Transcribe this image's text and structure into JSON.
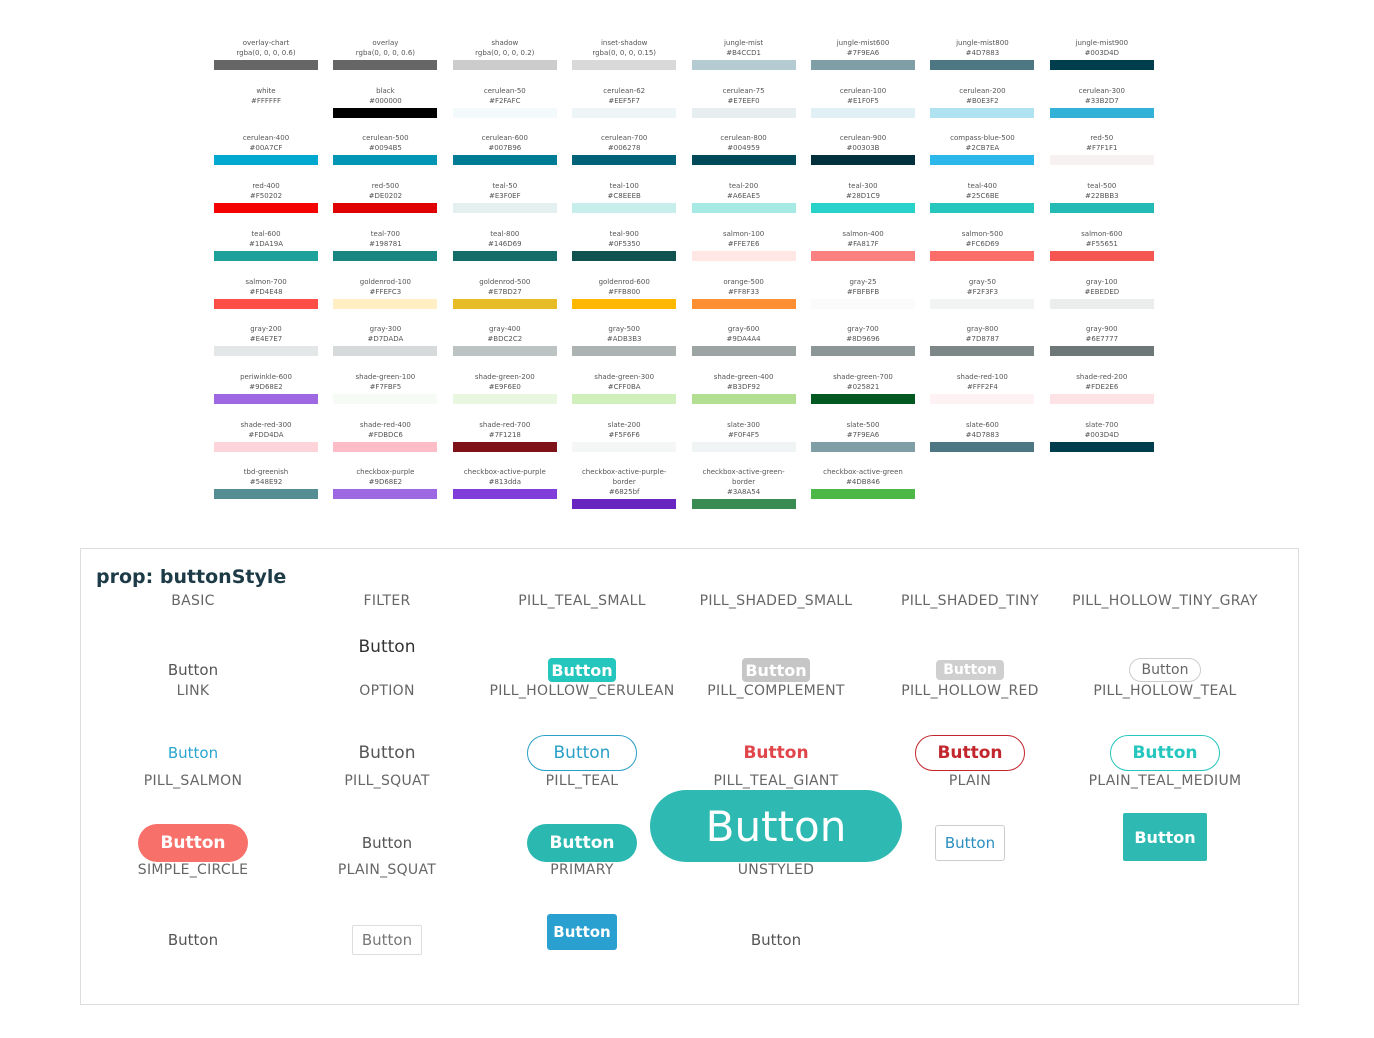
{
  "swatches": [
    [
      {
        "name": "overlay-chart",
        "value": "rgba(0, 0, 0, 0.6)"
      },
      {
        "name": "overlay",
        "value": "rgba(0, 0, 0, 0.6)"
      },
      {
        "name": "shadow",
        "value": "rgba(0, 0, 0, 0.2)"
      },
      {
        "name": "inset-shadow",
        "value": "rgba(0, 0, 0, 0.15)"
      },
      {
        "name": "jungle-mist",
        "value": "#B4CCD1"
      },
      {
        "name": "jungle-mist600",
        "value": "#7F9EA6"
      },
      {
        "name": "jungle-mist800",
        "value": "#4D7883"
      },
      {
        "name": "jungle-mist900",
        "value": "#003D4D"
      }
    ],
    [
      {
        "name": "white",
        "value": "#FFFFFF"
      },
      {
        "name": "black",
        "value": "#000000"
      },
      {
        "name": "cerulean-50",
        "value": "#F2FAFC"
      },
      {
        "name": "cerulean-62",
        "value": "#EEF5F7"
      },
      {
        "name": "cerulean-75",
        "value": "#E7EEF0"
      },
      {
        "name": "cerulean-100",
        "value": "#E1F0F5"
      },
      {
        "name": "cerulean-200",
        "value": "#B0E3F2"
      },
      {
        "name": "cerulean-300",
        "value": "#33B2D7"
      }
    ],
    [
      {
        "name": "cerulean-400",
        "value": "#00A7CF"
      },
      {
        "name": "cerulean-500",
        "value": "#0094B5"
      },
      {
        "name": "cerulean-600",
        "value": "#007B96"
      },
      {
        "name": "cerulean-700",
        "value": "#006278"
      },
      {
        "name": "cerulean-800",
        "value": "#004959"
      },
      {
        "name": "cerulean-900",
        "value": "#00303B"
      },
      {
        "name": "compass-blue-500",
        "value": "#2CB7EA"
      },
      {
        "name": "red-50",
        "value": "#F7F1F1"
      }
    ],
    [
      {
        "name": "red-400",
        "value": "#F50202"
      },
      {
        "name": "red-500",
        "value": "#DE0202"
      },
      {
        "name": "teal-50",
        "value": "#E3F0EF"
      },
      {
        "name": "teal-100",
        "value": "#C8EEEB"
      },
      {
        "name": "teal-200",
        "value": "#A6EAE5"
      },
      {
        "name": "teal-300",
        "value": "#28D1C9"
      },
      {
        "name": "teal-400",
        "value": "#25C6BE"
      },
      {
        "name": "teal-500",
        "value": "#22BBB3"
      }
    ],
    [
      {
        "name": "teal-600",
        "value": "#1DA19A"
      },
      {
        "name": "teal-700",
        "value": "#198781"
      },
      {
        "name": "teal-800",
        "value": "#146D69"
      },
      {
        "name": "teal-900",
        "value": "#0F5350"
      },
      {
        "name": "salmon-100",
        "value": "#FFE7E6"
      },
      {
        "name": "salmon-400",
        "value": "#FA817F"
      },
      {
        "name": "salmon-500",
        "value": "#FC6D69"
      },
      {
        "name": "salmon-600",
        "value": "#F55651"
      }
    ],
    [
      {
        "name": "salmon-700",
        "value": "#FD4E48"
      },
      {
        "name": "goldenrod-100",
        "value": "#FFEFC3"
      },
      {
        "name": "goldenrod-500",
        "value": "#E7BD27"
      },
      {
        "name": "goldenrod-600",
        "value": "#FFB800"
      },
      {
        "name": "orange-500",
        "value": "#FF8F33"
      },
      {
        "name": "gray-25",
        "value": "#FBFBFB"
      },
      {
        "name": "gray-50",
        "value": "#F2F3F3"
      },
      {
        "name": "gray-100",
        "value": "#EBEDED"
      }
    ],
    [
      {
        "name": "gray-200",
        "value": "#E4E7E7"
      },
      {
        "name": "gray-300",
        "value": "#D7DADA"
      },
      {
        "name": "gray-400",
        "value": "#BDC2C2"
      },
      {
        "name": "gray-500",
        "value": "#ADB3B3"
      },
      {
        "name": "gray-600",
        "value": "#9DA4A4"
      },
      {
        "name": "gray-700",
        "value": "#8D9696"
      },
      {
        "name": "gray-800",
        "value": "#7D8787"
      },
      {
        "name": "gray-900",
        "value": "#6E7777"
      }
    ],
    [
      {
        "name": "periwinkle-600",
        "value": "#9D68E2"
      },
      {
        "name": "shade-green-100",
        "value": "#F7FBF5"
      },
      {
        "name": "shade-green-200",
        "value": "#E9F6E0"
      },
      {
        "name": "shade-green-300",
        "value": "#CFF0BA"
      },
      {
        "name": "shade-green-400",
        "value": "#B3DF92"
      },
      {
        "name": "shade-green-700",
        "value": "#025821"
      },
      {
        "name": "shade-red-100",
        "value": "#FFF2F4"
      },
      {
        "name": "shade-red-200",
        "value": "#FDE2E6"
      }
    ],
    [
      {
        "name": "shade-red-300",
        "value": "#FDD4DA"
      },
      {
        "name": "shade-red-400",
        "value": "#FDBDC6"
      },
      {
        "name": "shade-red-700",
        "value": "#7F1218"
      },
      {
        "name": "slate-200",
        "value": "#F5F6F6"
      },
      {
        "name": "slate-300",
        "value": "#F0F4F5"
      },
      {
        "name": "slate-500",
        "value": "#7F9EA6"
      },
      {
        "name": "slate-600",
        "value": "#4D7883"
      },
      {
        "name": "slate-700",
        "value": "#003D4D"
      }
    ],
    [
      {
        "name": "tbd-greenish",
        "value": "#548E92"
      },
      {
        "name": "checkbox-purple",
        "value": "#9D68E2"
      },
      {
        "name": "checkbox-active-purple",
        "value": "#813dda"
      },
      {
        "name": "checkbox-active-purple-border",
        "value": "#6825bf"
      },
      {
        "name": "checkbox-active-green-border",
        "value": "#3A8A54"
      },
      {
        "name": "checkbox-active-green",
        "value": "#4DB846"
      }
    ]
  ],
  "buttons": {
    "title": "prop: buttonStyle",
    "rows": [
      [
        {
          "label": "BASIC"
        },
        {
          "label": "FILTER"
        },
        {
          "label": "PILL_TEAL_SMALL"
        },
        {
          "label": "PILL_SHADED_SMALL"
        },
        {
          "label": "PILL_SHADED_TINY"
        },
        {
          "label": "PILL_HOLLOW_TINY_GRAY"
        }
      ],
      [
        {
          "button": "Button",
          "label": "LINK"
        },
        {
          "button": "Button",
          "label": "OPTION"
        },
        {
          "button": "Button",
          "label": "PILL_HOLLOW_CERULEAN"
        },
        {
          "button": "Button",
          "label": "PILL_COMPLEMENT"
        },
        {
          "button": "Button",
          "label": "PILL_HOLLOW_RED"
        },
        {
          "button": "Button",
          "label": "PILL_HOLLOW_TEAL"
        }
      ],
      [
        {
          "button": "Button",
          "label": "PILL_SALMON"
        },
        {
          "button": "Button",
          "label": "PILL_SQUAT"
        },
        {
          "button": "Button",
          "label": "PILL_TEAL"
        },
        {
          "button": "Button",
          "label": "PILL_TEAL_GIANT"
        },
        {
          "button": "Button",
          "label": "PLAIN"
        },
        {
          "button": "Button",
          "label": "PLAIN_TEAL_MEDIUM"
        }
      ],
      [
        {
          "button": "Button",
          "label": "SIMPLE_CIRCLE"
        },
        {
          "button": "Button",
          "label": "PLAIN_SQUAT"
        },
        {
          "button": "Button",
          "label": "PRIMARY"
        },
        {
          "button": "Button",
          "label": "UNSTYLED"
        },
        {
          "button": "Button"
        },
        {
          "button": "Button"
        }
      ],
      [
        {
          "button": "Button"
        },
        {
          "button": "Button"
        },
        {
          "button": "Button"
        },
        {
          "button": "Button"
        }
      ]
    ]
  }
}
